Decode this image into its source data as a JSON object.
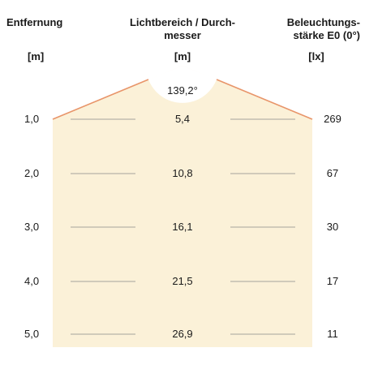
{
  "headers": {
    "distance_title": "Entfernung",
    "distance_unit": "[m]",
    "diameter_title_line1": "Lichtbereich / Durch-",
    "diameter_title_line2": "messer",
    "diameter_unit": "[m]",
    "illuminance_title_line1": "Beleuchtungs-",
    "illuminance_title_line2": "stärke E0 (0°)",
    "illuminance_unit": "[lx]"
  },
  "beam_angle": "139,2°",
  "colors": {
    "beam_fill": "#fbf1d8",
    "beam_edge": "#e8956a",
    "grid_line": "#8a8a8a"
  },
  "rows": [
    {
      "distance": "1,0",
      "diameter": "5,4",
      "illuminance": "269"
    },
    {
      "distance": "2,0",
      "diameter": "10,8",
      "illuminance": "67"
    },
    {
      "distance": "3,0",
      "diameter": "16,1",
      "illuminance": "30"
    },
    {
      "distance": "4,0",
      "diameter": "21,5",
      "illuminance": "17"
    },
    {
      "distance": "5,0",
      "diameter": "26,9",
      "illuminance": "11"
    }
  ]
}
